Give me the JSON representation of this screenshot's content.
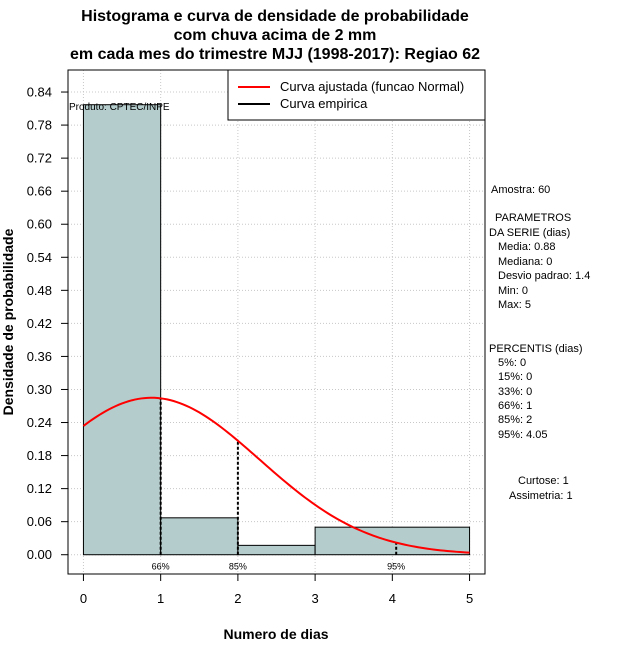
{
  "chart_data": {
    "type": "bar",
    "title": [
      "Histograma e curva de densidade de probabilidade",
      "com chuva acima de 2 mm",
      "em cada mes do trimestre MJJ (1998-2017): Regiao 62"
    ],
    "xlabel": "Numero de dias",
    "ylabel": "Densidade de probabilidade",
    "xlim": [
      -0.2,
      5.2
    ],
    "ylim": [
      -0.035,
      0.88
    ],
    "x_ticks": [
      0,
      1,
      2,
      3,
      4,
      5
    ],
    "y_ticks": [
      0.0,
      0.06,
      0.12,
      0.18,
      0.24,
      0.3,
      0.36,
      0.42,
      0.48,
      0.54,
      0.6,
      0.66,
      0.72,
      0.78,
      0.84
    ],
    "y_tick_labels": [
      "0.00",
      "0.06",
      "0.12",
      "0.18",
      "0.24",
      "0.30",
      "0.36",
      "0.42",
      "0.48",
      "0.54",
      "0.60",
      "0.66",
      "0.72",
      "0.78",
      "0.84"
    ],
    "grid": true,
    "bins": [
      {
        "x0": 0,
        "x1": 1,
        "value": 0.817
      },
      {
        "x0": 1,
        "x1": 2,
        "value": 0.067
      },
      {
        "x0": 2,
        "x1": 3,
        "value": 0.017
      },
      {
        "x0": 3,
        "x1": 5,
        "value": 0.05
      }
    ],
    "bar_color": "#b4cccc",
    "series": [
      {
        "name": "Curva ajustada (funcao Normal)",
        "color": "#ff0000",
        "type": "normal",
        "mean": 0.88,
        "sd": 1.4,
        "x_range": [
          0,
          5
        ]
      },
      {
        "name": "Curva empirica",
        "color": "#000000"
      }
    ],
    "percentile_markers": [
      {
        "x": 1,
        "label": "66%"
      },
      {
        "x": 2,
        "label": "85%"
      },
      {
        "x": 4.05,
        "label": "95%"
      }
    ],
    "product_label": "Produto: CPTEC/INPE",
    "legend_position": "top-right"
  },
  "stats": {
    "sample": "Amostra: 60",
    "params_header_1": "PARAMETROS",
    "params_header_2": "DA SERIE (dias)",
    "params": [
      "Media: 0.88",
      "Mediana: 0",
      "Desvio padrao: 1.4",
      "Min: 0",
      "Max: 5"
    ],
    "percentiles_header": "PERCENTIS (dias)",
    "percentiles": [
      "5%: 0",
      "15%: 0",
      "33%: 0",
      "66%: 1",
      "85%: 2",
      "95%: 4.05"
    ],
    "kurtosis": "Curtose: 1",
    "skewness": "Assimetria: 1"
  }
}
